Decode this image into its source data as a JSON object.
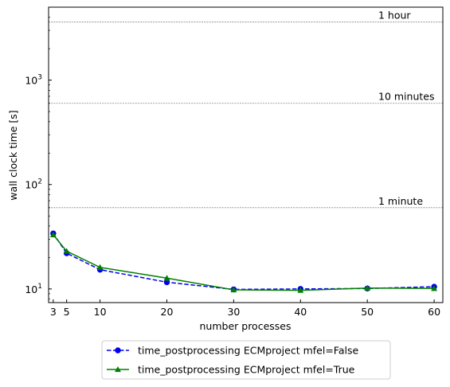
{
  "chart_data": {
    "type": "line",
    "title": "",
    "xlabel": "number processes",
    "ylabel": "wall clock time [s]",
    "yscale": "log",
    "xlim": [
      2.3,
      61.3
    ],
    "ylim": [
      7.4,
      5000
    ],
    "x_ticks": [
      3,
      5,
      10,
      20,
      30,
      40,
      50,
      60
    ],
    "y_ticks": [
      {
        "value": 10,
        "base": "10",
        "exp": "1"
      },
      {
        "value": 100,
        "base": "10",
        "exp": "2"
      },
      {
        "value": 1000,
        "base": "10",
        "exp": "3"
      }
    ],
    "grid": false,
    "legend_position": "below plot",
    "reference_lines": [
      {
        "value": 60,
        "label": "1 minute"
      },
      {
        "value": 600,
        "label": "10 minutes"
      },
      {
        "value": 3600,
        "label": "1 hour"
      }
    ],
    "series": [
      {
        "name": "time_postprocessing ECMproject mfel=False",
        "color": "#0000ee",
        "linestyle": "dashed",
        "marker": "circle",
        "x": [
          3,
          5,
          10,
          20,
          30,
          40,
          50,
          60
        ],
        "y": [
          34,
          22,
          15.3,
          11.6,
          9.9,
          10.0,
          10.1,
          10.5
        ]
      },
      {
        "name": "time_postprocessing ECMproject mfel=True",
        "color": "#008000",
        "linestyle": "solid",
        "marker": "triangle",
        "x": [
          3,
          5,
          10,
          20,
          30,
          40,
          50,
          60
        ],
        "y": [
          33,
          23,
          16.1,
          12.7,
          9.8,
          9.7,
          10.2,
          10.1
        ]
      }
    ]
  }
}
